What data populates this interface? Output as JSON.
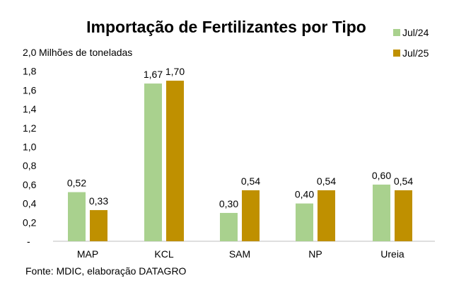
{
  "chart_data": {
    "type": "bar",
    "title": "Importação de Fertilizantes por Tipo",
    "ylabel": "Milhões de toneladas",
    "xlabel": "",
    "source": "Fonte: MDIC, elaboração DATAGRO",
    "ylim": [
      0,
      2.0
    ],
    "yticks": [
      "-",
      "0,2",
      "0,4",
      "0,6",
      "0,8",
      "1,0",
      "1,2",
      "1,4",
      "1,6",
      "1,8",
      "2,0"
    ],
    "grid": false,
    "legend_position": "top-right",
    "categories": [
      "MAP",
      "KCL",
      "SAM",
      "NP",
      "Ureia"
    ],
    "series": [
      {
        "name": "Jul/24",
        "color": "#a9d18e",
        "values": [
          0.52,
          1.67,
          0.3,
          0.4,
          0.6
        ],
        "labels": [
          "0,52",
          "1,67",
          "0,30",
          "0,40",
          "0,60"
        ]
      },
      {
        "name": "Jul/25",
        "color": "#bf9000",
        "values": [
          0.33,
          1.7,
          0.54,
          0.54,
          0.54
        ],
        "labels": [
          "0,33",
          "1,70",
          "0,54",
          "0,54",
          "0,54"
        ]
      }
    ]
  }
}
